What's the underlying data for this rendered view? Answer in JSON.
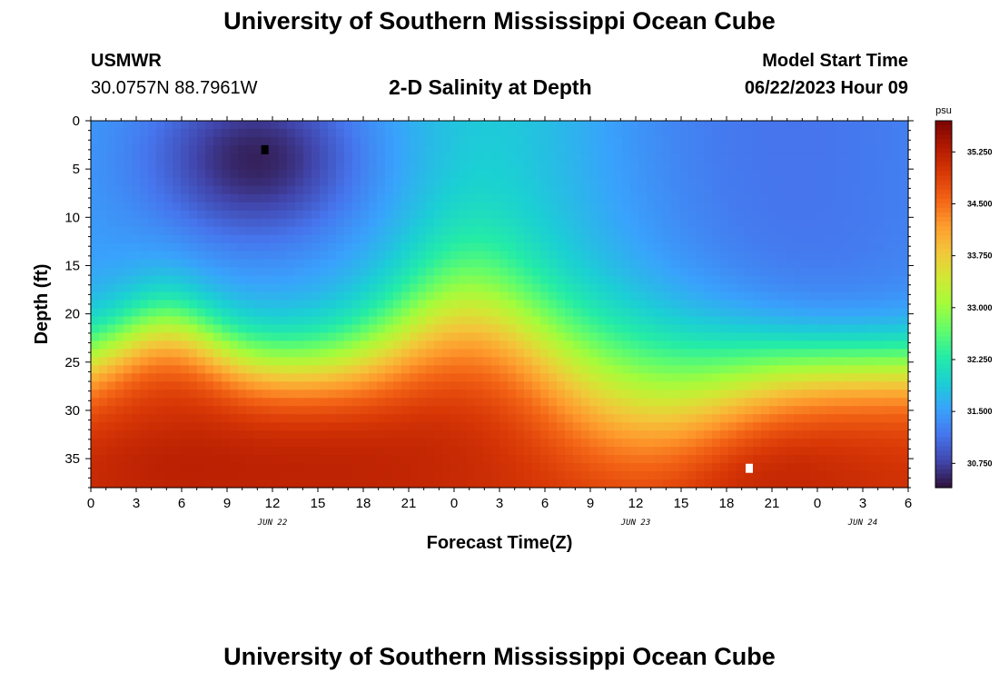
{
  "header": {
    "title": "University of Southern Mississippi Ocean Cube",
    "station_id": "USMWR",
    "station_coords": "30.0757N  88.7961W",
    "subtitle": "2-D Salinity at Depth",
    "model_start_label": "Model Start Time",
    "model_start_value": "06/22/2023 Hour 09"
  },
  "footer": {
    "title": "University of Southern Mississippi Ocean Cube"
  },
  "chart_data": {
    "type": "heatmap",
    "title": "2-D Salinity at Depth",
    "xlabel": "Forecast Time(Z)",
    "ylabel": "Depth (ft)",
    "x_range_hours": [
      0,
      54
    ],
    "y_range_ft": [
      0,
      38
    ],
    "y_inverted": true,
    "x_tick_labels": [
      "0",
      "3",
      "6",
      "9",
      "12",
      "15",
      "18",
      "21",
      "0",
      "3",
      "6",
      "9",
      "12",
      "15",
      "18",
      "21",
      "0",
      "3",
      "6"
    ],
    "y_tick_labels": [
      "0",
      "5",
      "10",
      "15",
      "20",
      "25",
      "30",
      "35"
    ],
    "y_tick_values": [
      0,
      5,
      10,
      15,
      20,
      25,
      30,
      35
    ],
    "date_labels": [
      {
        "text": "JUN 22",
        "hour": 12
      },
      {
        "text": "JUN 23",
        "hour": 36
      },
      {
        "text": "JUN 24",
        "hour": 51
      }
    ],
    "colorbar": {
      "unit": "psu",
      "min": 30.4,
      "max": 35.7,
      "tick_labels": [
        "30.750",
        "31.500",
        "32.250",
        "33.000",
        "33.750",
        "34.500",
        "35.250"
      ],
      "tick_values": [
        30.75,
        31.5,
        32.25,
        33.0,
        33.75,
        34.5,
        35.25
      ]
    },
    "markers": [
      {
        "name": "minimum-marker",
        "hour": 11.5,
        "depth": 3,
        "color": "#000000"
      },
      {
        "name": "maximum-marker",
        "hour": 43.5,
        "depth": 36,
        "color": "#ffffff"
      }
    ],
    "colors": {
      "scale": [
        "#30123b",
        "#4145ab",
        "#4675ed",
        "#39a2fc",
        "#1bcfd4",
        "#24eca6",
        "#61fc6c",
        "#a4fc3b",
        "#d1e834",
        "#f3c63a",
        "#fe9b2d",
        "#f36315",
        "#d93806",
        "#b11901",
        "#7a0402"
      ]
    }
  }
}
